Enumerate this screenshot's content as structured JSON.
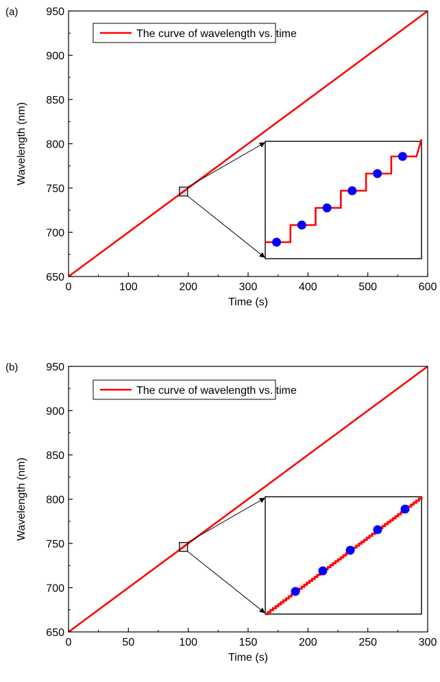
{
  "chart_data": [
    {
      "type": "line",
      "panel_label": "(a)",
      "xlabel": "Time (s)",
      "ylabel": "Wavelength (nm)",
      "xlim": [
        0,
        600
      ],
      "ylim": [
        650,
        950
      ],
      "xticks": [
        "0",
        "100",
        "200",
        "300",
        "400",
        "500",
        "600"
      ],
      "yticks": [
        "650",
        "700",
        "750",
        "800",
        "850",
        "900",
        "950"
      ],
      "legend": {
        "label": "The curve of wavelength vs. time",
        "position": "top-left"
      },
      "series": [
        {
          "name": "The curve of wavelength vs. time",
          "x": [
            0,
            600
          ],
          "y": [
            650,
            950
          ]
        }
      ],
      "inset": {
        "style": "staircase",
        "zoom_center": [
          192,
          746
        ],
        "steps": 6
      },
      "colors": {
        "line": "#ff0000",
        "marker": "#0000ff",
        "frame": "#000000"
      }
    },
    {
      "type": "line",
      "panel_label": "(b)",
      "xlabel": "Time (s)",
      "ylabel": "Wavelength (nm)",
      "xlim": [
        0,
        300
      ],
      "ylim": [
        650,
        950
      ],
      "xticks": [
        "0",
        "50",
        "100",
        "150",
        "200",
        "250",
        "300"
      ],
      "yticks": [
        "650",
        "700",
        "750",
        "800",
        "850",
        "900",
        "950"
      ],
      "legend": {
        "label": "The curve of wavelength vs. time",
        "position": "top-left"
      },
      "series": [
        {
          "name": "The curve of wavelength vs. time",
          "x": [
            0,
            300
          ],
          "y": [
            650,
            950
          ]
        }
      ],
      "inset": {
        "style": "fine-staircase",
        "zoom_center": [
          96,
          746
        ],
        "steps": 6
      },
      "colors": {
        "line": "#ff0000",
        "marker": "#0000ff",
        "frame": "#000000"
      }
    }
  ]
}
